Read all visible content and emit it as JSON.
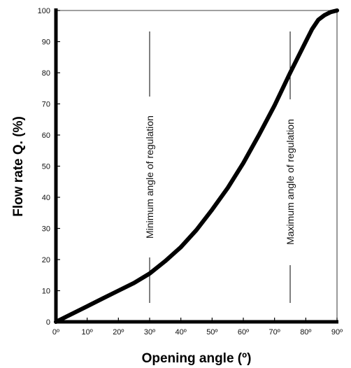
{
  "chart_data": {
    "type": "line",
    "xlabel": "Opening angle (º)",
    "ylabel": "Flow rate Q. (%)",
    "xlim": [
      0,
      90
    ],
    "ylim": [
      0,
      100
    ],
    "x_ticks": [
      "0º",
      "10º",
      "20º",
      "30º",
      "40º",
      "50º",
      "60º",
      "70º",
      "80º",
      "90º"
    ],
    "y_ticks": [
      "0",
      "10",
      "20",
      "30",
      "40",
      "50",
      "60",
      "70",
      "80",
      "90",
      "100"
    ],
    "grid": false,
    "series": [
      {
        "x": [
          0,
          5,
          10,
          15,
          20,
          25,
          30,
          35,
          40,
          45,
          50,
          55,
          60,
          65,
          70,
          75,
          80,
          82,
          84,
          86,
          88,
          90
        ],
        "y": [
          0,
          2.5,
          5,
          7.5,
          10,
          12.5,
          15.5,
          19.5,
          24,
          29.5,
          36,
          43,
          51,
          60,
          69.5,
          80,
          90,
          94,
          97,
          98.5,
          99.5,
          100
        ]
      }
    ],
    "annotations": [
      {
        "text": "Minimum angle of regulation",
        "x": 30
      },
      {
        "text": "Maximum angle of regulation",
        "x": 75
      }
    ]
  }
}
